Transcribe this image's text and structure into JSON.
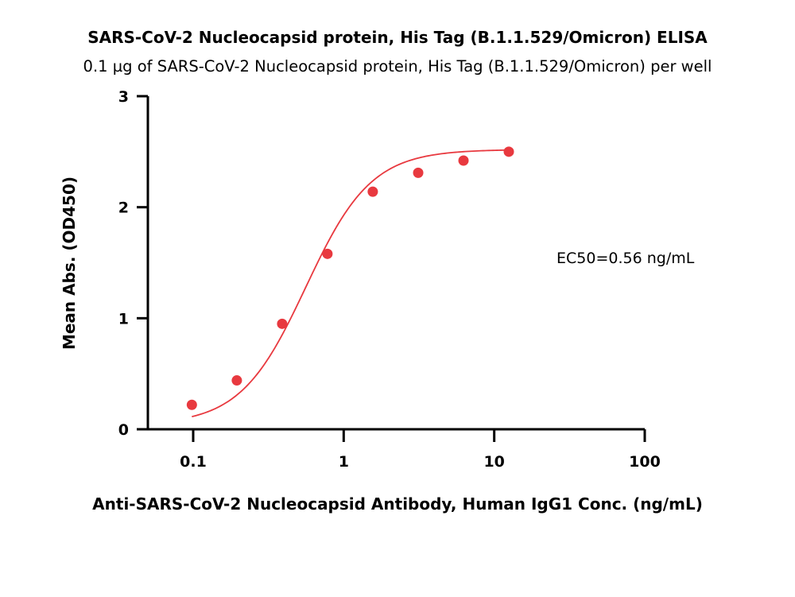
{
  "chart_data": {
    "type": "scatter",
    "title": "SARS-CoV-2 Nucleocapsid protein, His Tag (B.1.1.529/Omicron) ELISA",
    "subtitle": "0.1 µg of SARS-CoV-2 Nucleocapsid protein, His Tag (B.1.1.529/Omicron) per well",
    "xlabel": "Anti-SARS-CoV-2 Nucleocapsid Antibody, Human IgG1 Conc. (ng/mL)",
    "ylabel": "Mean Abs. (OD450)",
    "x_scale": "log",
    "xlim": [
      0.05,
      100
    ],
    "ylim": [
      0,
      3
    ],
    "x_ticks": [
      0.1,
      1,
      10,
      100
    ],
    "x_tick_labels": [
      "0.1",
      "1",
      "10",
      "100"
    ],
    "y_ticks": [
      0,
      1,
      2,
      3
    ],
    "y_tick_labels": [
      "0",
      "1",
      "2",
      "3"
    ],
    "grid": false,
    "legend": "none",
    "series": [
      {
        "x": [
          0.098,
          0.195,
          0.39,
          0.78,
          1.56,
          3.125,
          6.25,
          12.5
        ],
        "y": [
          0.22,
          0.44,
          0.95,
          1.58,
          2.14,
          2.31,
          2.42,
          2.5
        ],
        "color": "#e8393f",
        "fit": "4PL"
      }
    ],
    "annotations": [
      {
        "text": "EC50=0.56 ng/mL"
      }
    ]
  }
}
